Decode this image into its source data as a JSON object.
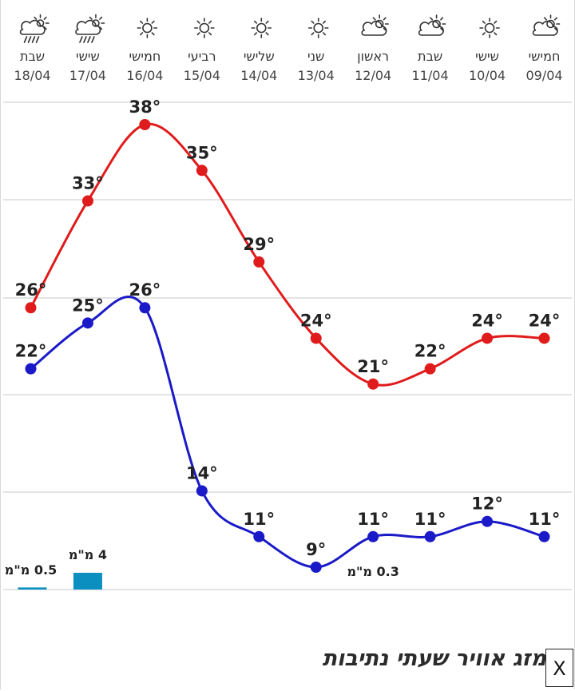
{
  "chart_data": {
    "type": "line",
    "days": [
      {
        "name": "חמישי",
        "date": "09/04",
        "icon": "partly-cloudy-icon"
      },
      {
        "name": "שישי",
        "date": "10/04",
        "icon": "sunny-icon"
      },
      {
        "name": "שבת",
        "date": "11/04",
        "icon": "partly-cloudy-icon"
      },
      {
        "name": "ראשון",
        "date": "12/04",
        "icon": "partly-cloudy-icon"
      },
      {
        "name": "שני",
        "date": "13/04",
        "icon": "sunny-icon"
      },
      {
        "name": "שלישי",
        "date": "14/04",
        "icon": "sunny-icon"
      },
      {
        "name": "רביעי",
        "date": "15/04",
        "icon": "sunny-icon"
      },
      {
        "name": "חמישי",
        "date": "16/04",
        "icon": "sunny-icon"
      },
      {
        "name": "שישי",
        "date": "17/04",
        "icon": "rain-cloud-sun-icon"
      },
      {
        "name": "שבת",
        "date": "18/04",
        "icon": "rain-cloud-sun-icon"
      }
    ],
    "series": [
      {
        "key": "max",
        "color": "#e01b1b",
        "values": [
          24,
          24,
          22,
          21,
          24,
          29,
          35,
          38,
          33,
          26
        ]
      },
      {
        "key": "min",
        "color": "#1a1ac8",
        "values": [
          11,
          12,
          11,
          11,
          9,
          11,
          14,
          26,
          25,
          22
        ]
      }
    ],
    "temp_labels": {
      "max": [
        "24°",
        "24°",
        "22°",
        "21°",
        "24°",
        "29°",
        "35°",
        "38°",
        "33°",
        "26°"
      ],
      "min": [
        "11°",
        "12°",
        "11°",
        "11°",
        "9°",
        "11°",
        "14°",
        "26°",
        "25°",
        "22°"
      ]
    },
    "precipitation": [
      {
        "day_index": 3,
        "value": 0.3,
        "label": "0.3 מ\"מ",
        "show_bar": false
      },
      {
        "day_index": 8,
        "value": 4,
        "label": "4 מ\"מ",
        "show_bar": true
      },
      {
        "day_index": 9,
        "value": 0.5,
        "label": "0.5 מ\"מ",
        "show_bar": true
      }
    ],
    "precip_color": "#0a8fc0",
    "ylim": [
      6,
      43
    ],
    "grid": true
  },
  "footer": {
    "title": "מזג אוויר שעתי נתיבות",
    "close_label": "X"
  }
}
